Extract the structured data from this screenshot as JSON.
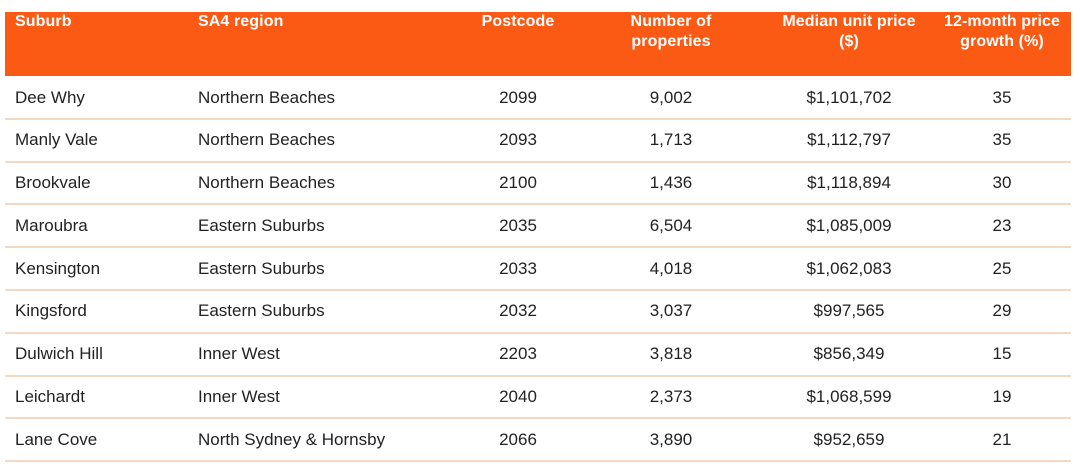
{
  "table": {
    "columns": [
      {
        "key": "suburb",
        "label_lines": [
          "Suburb"
        ]
      },
      {
        "key": "sa4_region",
        "label_lines": [
          "SA4 region"
        ]
      },
      {
        "key": "postcode",
        "label_lines": [
          "Postcode"
        ]
      },
      {
        "key": "number_of_properties",
        "label_lines": [
          "Number of",
          "properties"
        ]
      },
      {
        "key": "median_unit_price",
        "label_lines": [
          "Median unit price",
          "($)"
        ]
      },
      {
        "key": "price_growth_12m",
        "label_lines": [
          "12-month price",
          "growth (%)"
        ]
      }
    ],
    "rows": [
      {
        "suburb": "Dee Why",
        "sa4_region": "Northern Beaches",
        "postcode": "2099",
        "number_of_properties": "9,002",
        "median_unit_price": "$1,101,702",
        "price_growth_12m": "35"
      },
      {
        "suburb": "Manly Vale",
        "sa4_region": "Northern Beaches",
        "postcode": "2093",
        "number_of_properties": "1,713",
        "median_unit_price": "$1,112,797",
        "price_growth_12m": "35"
      },
      {
        "suburb": "Brookvale",
        "sa4_region": "Northern Beaches",
        "postcode": "2100",
        "number_of_properties": "1,436",
        "median_unit_price": "$1,118,894",
        "price_growth_12m": "30"
      },
      {
        "suburb": "Maroubra",
        "sa4_region": "Eastern Suburbs",
        "postcode": "2035",
        "number_of_properties": "6,504",
        "median_unit_price": "$1,085,009",
        "price_growth_12m": "23"
      },
      {
        "suburb": "Kensington",
        "sa4_region": "Eastern Suburbs",
        "postcode": "2033",
        "number_of_properties": "4,018",
        "median_unit_price": "$1,062,083",
        "price_growth_12m": "25"
      },
      {
        "suburb": "Kingsford",
        "sa4_region": "Eastern Suburbs",
        "postcode": "2032",
        "number_of_properties": "3,037",
        "median_unit_price": "$997,565",
        "price_growth_12m": "29"
      },
      {
        "suburb": "Dulwich Hill",
        "sa4_region": "Inner West",
        "postcode": "2203",
        "number_of_properties": "3,818",
        "median_unit_price": "$856,349",
        "price_growth_12m": "15"
      },
      {
        "suburb": "Leichardt",
        "sa4_region": "Inner West",
        "postcode": "2040",
        "number_of_properties": "2,373",
        "median_unit_price": "$1,068,599",
        "price_growth_12m": "19"
      },
      {
        "suburb": "Lane Cove",
        "sa4_region": "North Sydney & Hornsby",
        "postcode": "2066",
        "number_of_properties": "3,890",
        "median_unit_price": "$952,659",
        "price_growth_12m": "21"
      }
    ]
  },
  "colors": {
    "header_background": "#fa5a14",
    "header_text": "#ffffff",
    "row_divider": "#f3d8c4",
    "body_text": "#222222"
  }
}
